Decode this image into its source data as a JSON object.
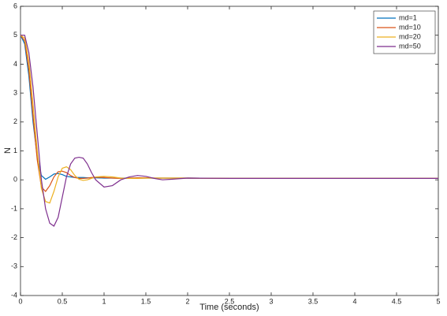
{
  "chart_data": {
    "type": "line",
    "xlabel": "Time (seconds)",
    "ylabel": "N",
    "x": [
      0,
      0.05,
      0.1,
      0.15,
      0.2,
      0.25,
      0.3,
      0.35,
      0.4,
      0.45,
      0.5,
      0.55,
      0.6,
      0.65,
      0.7,
      0.75,
      0.8,
      0.85,
      0.9,
      1.0,
      1.1,
      1.2,
      1.3,
      1.4,
      1.5,
      1.6,
      1.7,
      1.8,
      2.0,
      2.5,
      3,
      4,
      5
    ],
    "series": [
      {
        "name": "md=1",
        "color": "#0072bd",
        "values": [
          5,
          4.7,
          3.6,
          2.0,
          0.8,
          0.15,
          0.02,
          0.1,
          0.2,
          0.22,
          0.18,
          0.12,
          0.1,
          0.08,
          0.08,
          0.08,
          0.07,
          0.07,
          0.07,
          0.06,
          0.06,
          0.06,
          0.06,
          0.06,
          0.06,
          0.06,
          0.06,
          0.06,
          0.06,
          0.05,
          0.05,
          0.05,
          0.05
        ]
      },
      {
        "name": "md=10",
        "color": "#d95319",
        "values": [
          5,
          4.8,
          3.8,
          2.2,
          0.7,
          -0.25,
          -0.4,
          -0.2,
          0.1,
          0.28,
          0.3,
          0.25,
          0.15,
          0.08,
          0.05,
          0.05,
          0.06,
          0.08,
          0.09,
          0.08,
          0.06,
          0.05,
          0.06,
          0.07,
          0.07,
          0.06,
          0.06,
          0.06,
          0.06,
          0.05,
          0.05,
          0.05,
          0.05
        ]
      },
      {
        "name": "md=20",
        "color": "#edb120",
        "values": [
          5,
          4.9,
          4.1,
          2.6,
          1.0,
          -0.3,
          -0.75,
          -0.8,
          -0.4,
          0.1,
          0.4,
          0.45,
          0.35,
          0.15,
          0.02,
          -0.02,
          0.0,
          0.05,
          0.1,
          0.12,
          0.1,
          0.06,
          0.05,
          0.05,
          0.06,
          0.06,
          0.06,
          0.06,
          0.06,
          0.05,
          0.05,
          0.05,
          0.05
        ]
      },
      {
        "name": "md=50",
        "color": "#7e2f8e",
        "values": [
          5,
          5.0,
          4.4,
          3.2,
          1.6,
          0.0,
          -1.0,
          -1.5,
          -1.6,
          -1.3,
          -0.6,
          0.1,
          0.55,
          0.75,
          0.78,
          0.75,
          0.55,
          0.25,
          0.0,
          -0.25,
          -0.2,
          0.0,
          0.1,
          0.15,
          0.12,
          0.05,
          0.0,
          0.02,
          0.06,
          0.05,
          0.05,
          0.05,
          0.05
        ]
      }
    ],
    "xlim": [
      0,
      5
    ],
    "xticks": [
      0,
      0.5,
      1,
      1.5,
      2,
      2.5,
      3,
      3.5,
      4,
      4.5,
      5
    ],
    "ylim": [
      -4,
      6
    ],
    "yticks": [
      -4,
      -3,
      -2,
      -1,
      0,
      1,
      2,
      3,
      4,
      5,
      6
    ],
    "legend": "top-right"
  }
}
